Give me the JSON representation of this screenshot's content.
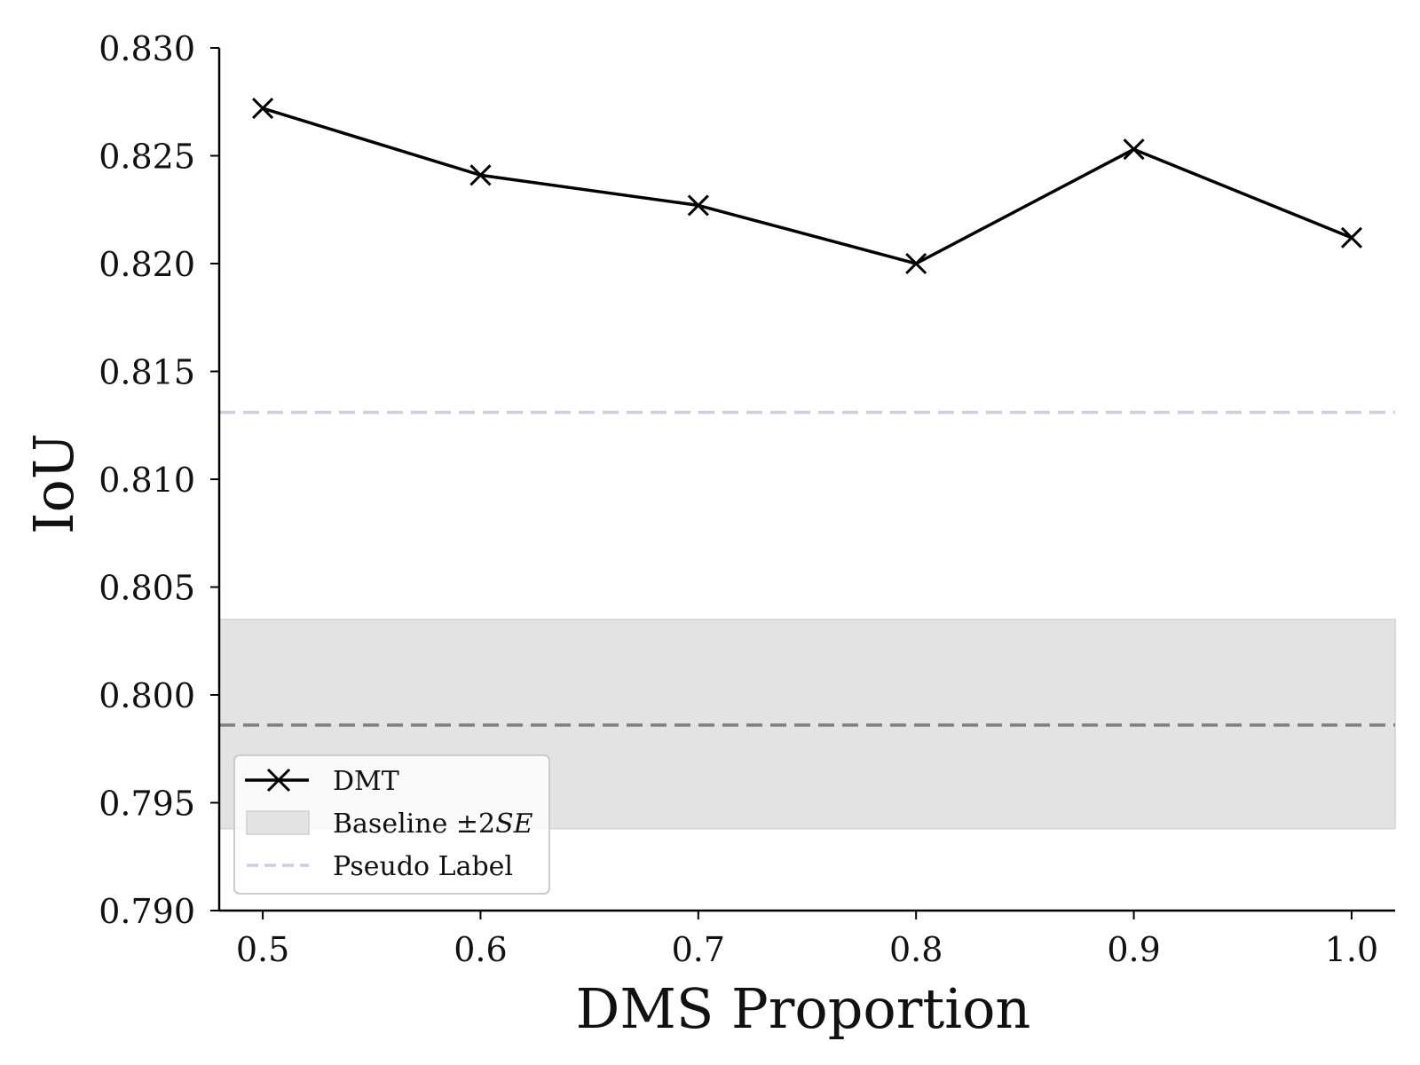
{
  "chart_data": {
    "type": "line",
    "xlabel": "DMS Proportion",
    "ylabel": "IoU",
    "xlim": [
      0.48,
      1.02
    ],
    "ylim": [
      0.79,
      0.83
    ],
    "x_ticks": [
      "0.5",
      "0.6",
      "0.7",
      "0.8",
      "0.9",
      "1.0"
    ],
    "y_ticks": [
      "0.790",
      "0.795",
      "0.800",
      "0.805",
      "0.810",
      "0.815",
      "0.820",
      "0.825",
      "0.830"
    ],
    "grid": false,
    "legend_position": "lower-left",
    "series": [
      {
        "name": "DMT",
        "color": "#000000",
        "marker": "x",
        "x": [
          0.5,
          0.6,
          0.7,
          0.8,
          0.9,
          1.0
        ],
        "y": [
          0.8272,
          0.8241,
          0.8227,
          0.82,
          0.8253,
          0.8212
        ]
      }
    ],
    "baseline": {
      "name": "Baseline ±2SE",
      "name_main": "Baseline ±2",
      "name_italic": "SE",
      "mean": 0.7986,
      "band": [
        0.7938,
        0.8035
      ],
      "line_color": "#808080",
      "band_color": "#e3e3e3"
    },
    "pseudo_label": {
      "name": "Pseudo Label",
      "value": 0.8131,
      "color": "#cfcde3"
    }
  }
}
